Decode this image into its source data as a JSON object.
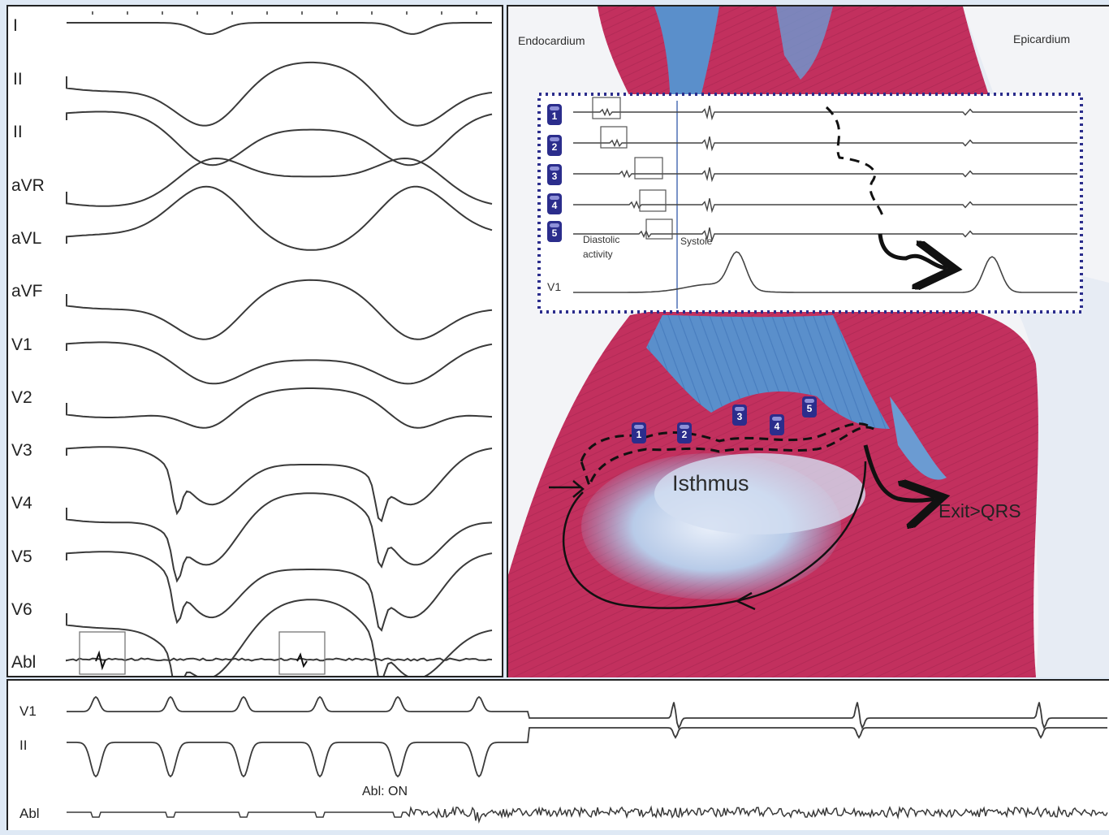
{
  "ecg": {
    "leads": [
      "I",
      "II",
      "II",
      "aVR",
      "aVL",
      "aVF",
      "V1",
      "V2",
      "V3",
      "V4",
      "V5",
      "V6",
      "Abl"
    ]
  },
  "histology": {
    "endocardium_label": "Endocardium",
    "epicardium_label": "Epicardium",
    "isthmus_label": "Isthmus",
    "exit_label": "Exit>QRS",
    "electrode_numbers": [
      "1",
      "2",
      "3",
      "4",
      "5"
    ],
    "inset": {
      "diastolic_label": "Diastolic activity",
      "systole_label": "Systole",
      "v1_label": "V1"
    }
  },
  "strip": {
    "leads": [
      "V1",
      "II",
      "Abl"
    ],
    "ablation_label": "Abl: ON"
  },
  "colors": {
    "background": "#dfe9f5",
    "tissue_red": "#c2305e",
    "collagen_blue": "#5a8fcb",
    "electrode_badge": "#2b2d8c",
    "inset_border": "#2b2d8c"
  }
}
